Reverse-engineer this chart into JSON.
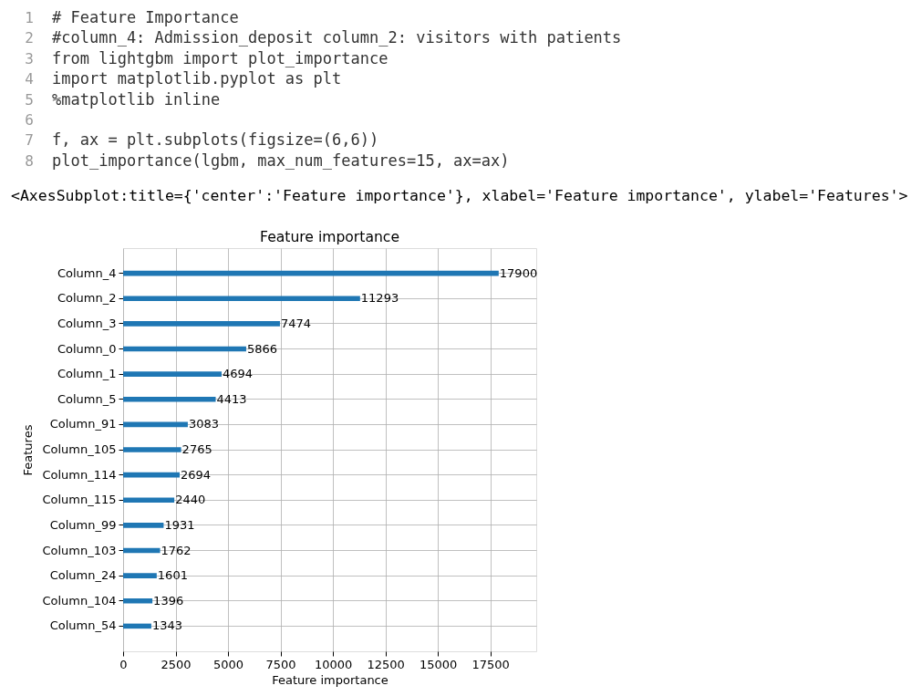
{
  "chart_data": {
    "type": "bar",
    "orientation": "horizontal",
    "title": "Feature importance",
    "xlabel": "Feature importance",
    "ylabel": "Features",
    "categories": [
      "Column_4",
      "Column_2",
      "Column_3",
      "Column_0",
      "Column_1",
      "Column_5",
      "Column_91",
      "Column_105",
      "Column_114",
      "Column_115",
      "Column_99",
      "Column_103",
      "Column_24",
      "Column_104",
      "Column_54"
    ],
    "values": [
      17900,
      11293,
      7474,
      5866,
      4694,
      4413,
      3083,
      2765,
      2694,
      2440,
      1931,
      1762,
      1601,
      1396,
      1343
    ],
    "color": "#1f77b4",
    "xlim": [
      0,
      19690
    ],
    "xticks": [
      0,
      2500,
      5000,
      7500,
      10000,
      12500,
      15000,
      17500
    ],
    "grid": true,
    "data_labels": true,
    "annotations": [
      "1 # Feature Importance",
      "2 #column_4: Admission_deposit column_2: visitors with patients",
      "3 from lightgbm import plot_importance",
      "4 import matplotlib.pyplot as plt",
      "5 %matplotlib inline",
      "6",
      "7 f, ax = plt.subplots(figsize=(6,6))",
      "8 plot_importance(lgbm, max_num_features=15, ax=ax)",
      "<AxesSubplot:title={'center':'Feature importance'}, xlabel='Feature importance', ylabel='Features'>"
    ]
  }
}
